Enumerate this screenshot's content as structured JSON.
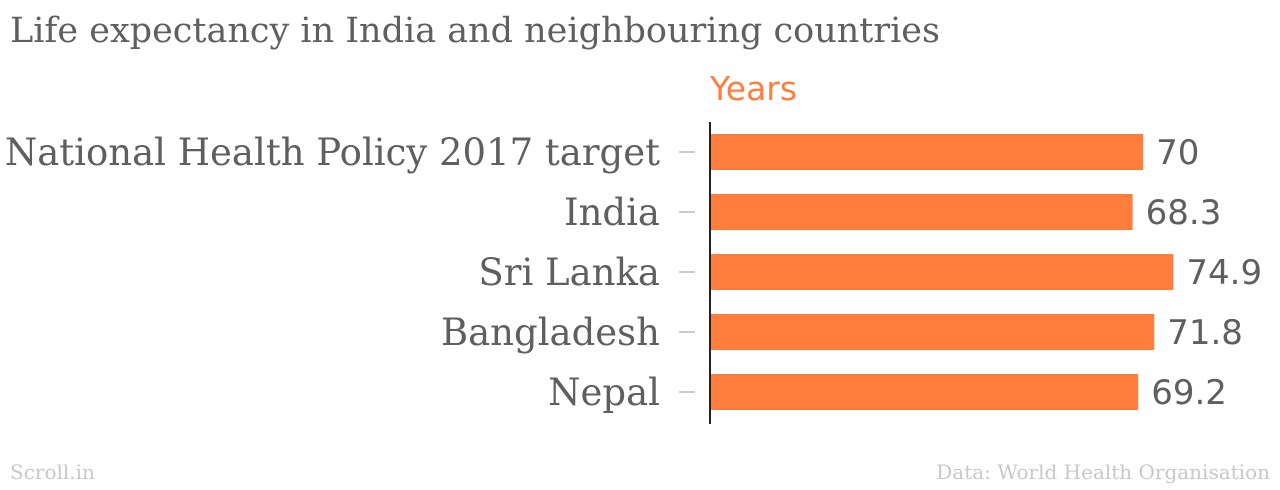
{
  "chart_data": {
    "type": "bar",
    "orientation": "horizontal",
    "title": "Life expectancy in India and neighbouring countries",
    "unit_label": "Years",
    "categories": [
      "National Health Policy 2017 target",
      "India",
      "Sri Lanka",
      "Bangladesh",
      "Nepal"
    ],
    "values": [
      70,
      68.3,
      74.9,
      71.8,
      69.2
    ],
    "value_labels": [
      "70",
      "68.3",
      "74.9",
      "71.8",
      "69.2"
    ],
    "xlim": [
      0,
      75
    ],
    "grid": false,
    "legend": "none",
    "bar_color": "#ff7d3d"
  },
  "footer": {
    "source": "Scroll.in",
    "data_credit": "Data: World Health Organisation"
  }
}
